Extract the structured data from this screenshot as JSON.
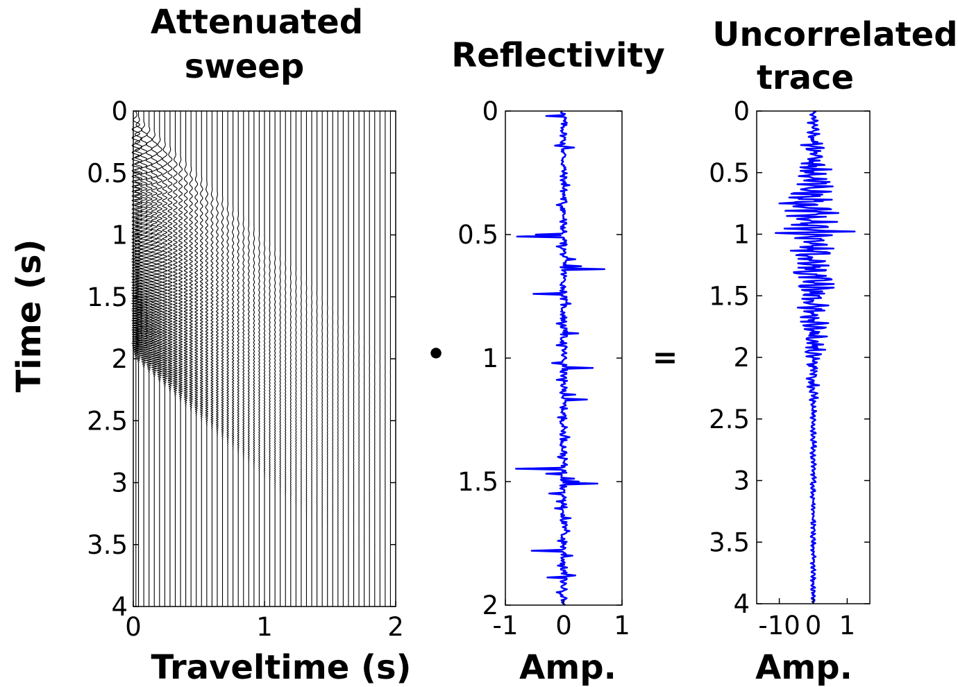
{
  "chart_data": [
    {
      "type": "line",
      "panel": "sweep",
      "title": [
        "Attenuated",
        "sweep"
      ],
      "xlabel": "Traveltime (s)",
      "ylabel": "Time (s)",
      "xlim": [
        0,
        2
      ],
      "ylim": [
        0,
        4
      ],
      "y_reversed": true,
      "xticks": [
        "0",
        "1",
        "2"
      ],
      "yticks": [
        "0",
        "0.5",
        "1",
        "1.5",
        "2",
        "2.5",
        "3",
        "3.5",
        "4"
      ],
      "trace_count": 50,
      "sweep_duration_s": 2,
      "trace_spacing_s": 0.04,
      "color": "#000000"
    },
    {
      "type": "line",
      "panel": "reflectivity",
      "title": [
        "Reflectivity"
      ],
      "xlabel": "Amp.",
      "ylabel": "",
      "xlim": [
        -1,
        1
      ],
      "ylim": [
        0,
        2
      ],
      "y_reversed": true,
      "xticks": [
        "-1",
        "0",
        "1"
      ],
      "yticks": [
        "0",
        "0.5",
        "1",
        "1.5",
        "2"
      ],
      "color": "#0000ff",
      "spikes": [
        {
          "t": 0.02,
          "a": -0.3
        },
        {
          "t": 0.14,
          "a": -0.15
        },
        {
          "t": 0.15,
          "a": 0.18
        },
        {
          "t": 0.3,
          "a": 0.1
        },
        {
          "t": 0.38,
          "a": -0.12
        },
        {
          "t": 0.45,
          "a": -0.06
        },
        {
          "t": 0.5,
          "a": -0.48
        },
        {
          "t": 0.51,
          "a": -0.8
        },
        {
          "t": 0.55,
          "a": -0.12
        },
        {
          "t": 0.6,
          "a": 0.2
        },
        {
          "t": 0.63,
          "a": 0.3
        },
        {
          "t": 0.64,
          "a": 0.7
        },
        {
          "t": 0.74,
          "a": -0.52
        },
        {
          "t": 0.78,
          "a": 0.12
        },
        {
          "t": 0.86,
          "a": -0.12
        },
        {
          "t": 0.9,
          "a": 0.25
        },
        {
          "t": 0.95,
          "a": -0.12
        },
        {
          "t": 1.02,
          "a": -0.2
        },
        {
          "t": 1.04,
          "a": 0.5
        },
        {
          "t": 1.09,
          "a": -0.12
        },
        {
          "t": 1.15,
          "a": 0.2
        },
        {
          "t": 1.17,
          "a": 0.4
        },
        {
          "t": 1.24,
          "a": -0.1
        },
        {
          "t": 1.32,
          "a": 0.1
        },
        {
          "t": 1.4,
          "a": -0.1
        },
        {
          "t": 1.45,
          "a": -0.82
        },
        {
          "t": 1.47,
          "a": -0.3
        },
        {
          "t": 1.49,
          "a": 0.18
        },
        {
          "t": 1.5,
          "a": 0.26
        },
        {
          "t": 1.51,
          "a": 0.58
        },
        {
          "t": 1.55,
          "a": -0.25
        },
        {
          "t": 1.58,
          "a": -0.12
        },
        {
          "t": 1.61,
          "a": -0.15
        },
        {
          "t": 1.65,
          "a": 0.12
        },
        {
          "t": 1.7,
          "a": 0.1
        },
        {
          "t": 1.74,
          "a": -0.1
        },
        {
          "t": 1.78,
          "a": -0.55
        },
        {
          "t": 1.8,
          "a": 0.15
        },
        {
          "t": 1.84,
          "a": -0.1
        },
        {
          "t": 1.88,
          "a": 0.2
        },
        {
          "t": 1.89,
          "a": -0.28
        },
        {
          "t": 1.95,
          "a": -0.12
        }
      ]
    },
    {
      "type": "line",
      "panel": "uncorrelated",
      "title": [
        "Uncorrelated",
        "trace"
      ],
      "xlabel": "Amp.",
      "ylabel": "",
      "xlim": [
        -15,
        15
      ],
      "ylim": [
        0,
        4
      ],
      "y_reversed": true,
      "xticks": [
        "-10",
        "0",
        "1"
      ],
      "yticks": [
        "0",
        "0.5",
        "1",
        "1.5",
        "2",
        "2.5",
        "3",
        "3.5",
        "4"
      ],
      "color": "#0000ff"
    }
  ],
  "operators": {
    "multiply": "•",
    "equals": "="
  }
}
